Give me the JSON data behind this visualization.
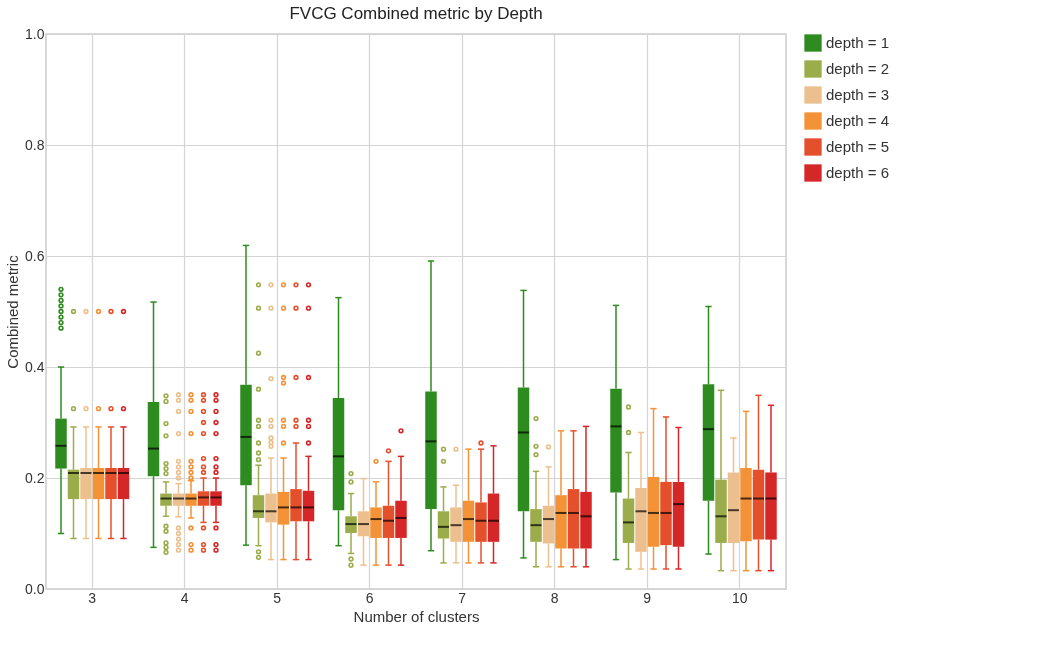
{
  "chart_data": {
    "type": "box",
    "title": "FVCG Combined metric by Depth",
    "xlabel": "Number of clusters",
    "ylabel": "Combined metric",
    "categories": [
      "3",
      "4",
      "5",
      "6",
      "7",
      "8",
      "9",
      "10"
    ],
    "ylim": [
      0,
      1
    ],
    "yticks": [
      {
        "value": 0,
        "label": "0.0"
      },
      0.2,
      0.4,
      0.6,
      0.8,
      {
        "value": 1,
        "label": "1.0"
      }
    ],
    "grid": true,
    "legend": "top right",
    "series": [
      {
        "name": "depth = 1",
        "color": "#2e8b1f",
        "boxes": [
          {
            "low": 0.1,
            "q1": 0.217,
            "median": 0.258,
            "q3": 0.307,
            "high": 0.4,
            "outliers": [
              0.47,
              0.48,
              0.49,
              0.5,
              0.51,
              0.52,
              0.53,
              0.54
            ]
          },
          {
            "low": 0.075,
            "q1": 0.203,
            "median": 0.253,
            "q3": 0.337,
            "high": 0.517
          },
          {
            "low": 0.079,
            "q1": 0.187,
            "median": 0.274,
            "q3": 0.368,
            "high": 0.619
          },
          {
            "low": 0.078,
            "q1": 0.142,
            "median": 0.239,
            "q3": 0.344,
            "high": 0.525
          },
          {
            "low": 0.069,
            "q1": 0.144,
            "median": 0.266,
            "q3": 0.356,
            "high": 0.591
          },
          {
            "low": 0.056,
            "q1": 0.14,
            "median": 0.282,
            "q3": 0.363,
            "high": 0.538
          },
          {
            "low": 0.053,
            "q1": 0.174,
            "median": 0.293,
            "q3": 0.361,
            "high": 0.511
          },
          {
            "low": 0.063,
            "q1": 0.159,
            "median": 0.288,
            "q3": 0.369,
            "high": 0.509
          }
        ]
      },
      {
        "name": "depth = 2",
        "color": "#9aad4a",
        "boxes": [
          {
            "low": 0.091,
            "q1": 0.162,
            "median": 0.209,
            "q3": 0.215,
            "high": 0.292,
            "outliers": [
              0.325,
              0.5
            ]
          },
          {
            "low": 0.131,
            "q1": 0.15,
            "median": 0.163,
            "q3": 0.172,
            "high": 0.193,
            "outliers": [
              0.348,
              0.338,
              0.298,
              0.276,
              0.226,
              0.217,
              0.208,
              0.113,
              0.104,
              0.083,
              0.075,
              0.066
            ]
          },
          {
            "low": 0.078,
            "q1": 0.128,
            "median": 0.14,
            "q3": 0.169,
            "high": 0.223,
            "outliers": [
              0.548,
              0.506,
              0.425,
              0.36,
              0.304,
              0.293,
              0.263,
              0.245,
              0.233,
              0.067,
              0.057
            ]
          },
          {
            "low": 0.064,
            "q1": 0.101,
            "median": 0.117,
            "q3": 0.131,
            "high": 0.172,
            "outliers": [
              0.208,
              0.193,
              0.054,
              0.043
            ]
          },
          {
            "low": 0.047,
            "q1": 0.091,
            "median": 0.112,
            "q3": 0.14,
            "high": 0.184,
            "outliers": [
              0.252,
              0.23
            ]
          },
          {
            "low": 0.04,
            "q1": 0.085,
            "median": 0.115,
            "q3": 0.144,
            "high": 0.212,
            "outliers": [
              0.307,
              0.257,
              0.242
            ]
          },
          {
            "low": 0.036,
            "q1": 0.083,
            "median": 0.12,
            "q3": 0.163,
            "high": 0.246,
            "outliers": [
              0.328,
              0.282
            ]
          },
          {
            "low": 0.033,
            "q1": 0.083,
            "median": 0.131,
            "q3": 0.197,
            "high": 0.358
          }
        ]
      },
      {
        "name": "depth = 3",
        "color": "#ecc08e",
        "boxes": [
          {
            "low": 0.091,
            "q1": 0.162,
            "median": 0.209,
            "q3": 0.218,
            "high": 0.292,
            "outliers": [
              0.325,
              0.5
            ]
          },
          {
            "low": 0.13,
            "q1": 0.15,
            "median": 0.163,
            "q3": 0.172,
            "high": 0.19,
            "outliers": [
              0.35,
              0.34,
              0.32,
              0.28,
              0.23,
              0.22,
              0.21,
              0.2,
              0.11,
              0.1,
              0.09,
              0.08,
              0.07
            ]
          },
          {
            "low": 0.053,
            "q1": 0.12,
            "median": 0.14,
            "q3": 0.172,
            "high": 0.236,
            "outliers": [
              0.548,
              0.506,
              0.379,
              0.304,
              0.293,
              0.272,
              0.264,
              0.257
            ]
          },
          {
            "low": 0.043,
            "q1": 0.095,
            "median": 0.117,
            "q3": 0.14,
            "high": 0.199
          },
          {
            "low": 0.047,
            "q1": 0.085,
            "median": 0.115,
            "q3": 0.147,
            "high": 0.187,
            "outliers": [
              0.252
            ]
          },
          {
            "low": 0.04,
            "q1": 0.082,
            "median": 0.126,
            "q3": 0.15,
            "high": 0.22,
            "outliers": [
              0.256
            ]
          },
          {
            "low": 0.036,
            "q1": 0.067,
            "median": 0.14,
            "q3": 0.182,
            "high": 0.282
          },
          {
            "low": 0.033,
            "q1": 0.083,
            "median": 0.142,
            "q3": 0.21,
            "high": 0.272
          }
        ]
      },
      {
        "name": "depth = 4",
        "color": "#f39237",
        "boxes": [
          {
            "low": 0.091,
            "q1": 0.162,
            "median": 0.209,
            "q3": 0.218,
            "high": 0.292,
            "outliers": [
              0.325,
              0.5
            ]
          },
          {
            "low": 0.128,
            "q1": 0.15,
            "median": 0.163,
            "q3": 0.172,
            "high": 0.195,
            "outliers": [
              0.35,
              0.34,
              0.32,
              0.28,
              0.23,
              0.22,
              0.21,
              0.2,
              0.11,
              0.08,
              0.07
            ]
          },
          {
            "low": 0.053,
            "q1": 0.116,
            "median": 0.147,
            "q3": 0.175,
            "high": 0.236,
            "outliers": [
              0.548,
              0.506,
              0.381,
              0.371,
              0.304,
              0.293,
              0.263
            ]
          },
          {
            "low": 0.043,
            "q1": 0.092,
            "median": 0.126,
            "q3": 0.147,
            "high": 0.193,
            "outliers": [
              0.23
            ]
          },
          {
            "low": 0.047,
            "q1": 0.085,
            "median": 0.126,
            "q3": 0.159,
            "high": 0.252
          },
          {
            "low": 0.04,
            "q1": 0.073,
            "median": 0.137,
            "q3": 0.169,
            "high": 0.285
          },
          {
            "low": 0.036,
            "q1": 0.076,
            "median": 0.137,
            "q3": 0.202,
            "high": 0.325
          },
          {
            "low": 0.033,
            "q1": 0.086,
            "median": 0.163,
            "q3": 0.218,
            "high": 0.32
          }
        ]
      },
      {
        "name": "depth = 5",
        "color": "#e4502c",
        "boxes": [
          {
            "low": 0.091,
            "q1": 0.162,
            "median": 0.209,
            "q3": 0.218,
            "high": 0.292,
            "outliers": [
              0.325,
              0.5
            ]
          },
          {
            "low": 0.12,
            "q1": 0.15,
            "median": 0.165,
            "q3": 0.176,
            "high": 0.2,
            "outliers": [
              0.35,
              0.34,
              0.32,
              0.3,
              0.28,
              0.235,
              0.22,
              0.21,
              0.11,
              0.08,
              0.07
            ]
          },
          {
            "low": 0.053,
            "q1": 0.122,
            "median": 0.147,
            "q3": 0.18,
            "high": 0.263,
            "outliers": [
              0.548,
              0.506,
              0.381,
              0.304,
              0.293
            ]
          },
          {
            "low": 0.043,
            "q1": 0.092,
            "median": 0.123,
            "q3": 0.15,
            "high": 0.23,
            "outliers": [
              0.249
            ]
          },
          {
            "low": 0.047,
            "q1": 0.085,
            "median": 0.123,
            "q3": 0.156,
            "high": 0.252,
            "outliers": [
              0.263
            ]
          },
          {
            "low": 0.04,
            "q1": 0.073,
            "median": 0.137,
            "q3": 0.18,
            "high": 0.285
          },
          {
            "low": 0.036,
            "q1": 0.079,
            "median": 0.137,
            "q3": 0.193,
            "high": 0.31
          },
          {
            "low": 0.033,
            "q1": 0.089,
            "median": 0.163,
            "q3": 0.215,
            "high": 0.349
          }
        ]
      },
      {
        "name": "depth = 6",
        "color": "#d62728",
        "boxes": [
          {
            "low": 0.091,
            "q1": 0.162,
            "median": 0.209,
            "q3": 0.218,
            "high": 0.292,
            "outliers": [
              0.325,
              0.5
            ]
          },
          {
            "low": 0.12,
            "q1": 0.15,
            "median": 0.165,
            "q3": 0.176,
            "high": 0.2,
            "outliers": [
              0.35,
              0.34,
              0.32,
              0.3,
              0.28,
              0.235,
              0.22,
              0.21,
              0.11,
              0.08,
              0.07
            ]
          },
          {
            "low": 0.053,
            "q1": 0.122,
            "median": 0.147,
            "q3": 0.177,
            "high": 0.239,
            "outliers": [
              0.548,
              0.506,
              0.381,
              0.304,
              0.293,
              0.263
            ]
          },
          {
            "low": 0.043,
            "q1": 0.092,
            "median": 0.128,
            "q3": 0.159,
            "high": 0.239,
            "outliers": [
              0.285
            ]
          },
          {
            "low": 0.047,
            "q1": 0.085,
            "median": 0.123,
            "q3": 0.172,
            "high": 0.258
          },
          {
            "low": 0.04,
            "q1": 0.073,
            "median": 0.131,
            "q3": 0.175,
            "high": 0.293
          },
          {
            "low": 0.036,
            "q1": 0.076,
            "median": 0.153,
            "q3": 0.193,
            "high": 0.291
          },
          {
            "low": 0.033,
            "q1": 0.089,
            "median": 0.163,
            "q3": 0.21,
            "high": 0.331
          }
        ]
      }
    ]
  }
}
